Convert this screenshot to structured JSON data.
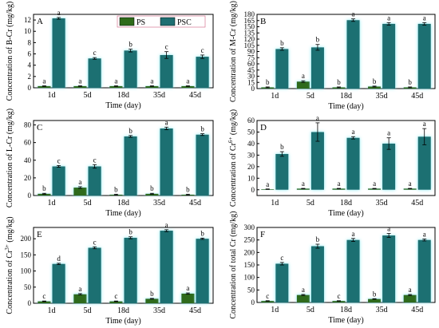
{
  "figure": {
    "legend": {
      "items": [
        {
          "name": "PS",
          "color": "#2f6b1a"
        },
        {
          "name": "PSC",
          "color": "#1f6f72"
        }
      ]
    },
    "colors": {
      "PS": "#2f6b1a",
      "PSC": "#1f6f72",
      "glow": "#7fe9f2"
    }
  },
  "chart_data": [
    {
      "type": "bar",
      "panel": "A",
      "ylabel": "Concentration of B-Cr (mg/kg)",
      "xlabel": "Time (day)",
      "categories": [
        "1d",
        "5d",
        "18d",
        "35d",
        "45d"
      ],
      "ylim": [
        0,
        13
      ],
      "yticks": [
        0,
        2,
        4,
        6,
        8,
        10,
        12
      ],
      "legend": "top-center",
      "series": [
        {
          "name": "PS",
          "values": [
            0.3,
            0.3,
            0.3,
            0.3,
            0.3
          ],
          "errors": [
            0.05,
            0.05,
            0.05,
            0.05,
            0.05
          ],
          "letters": [
            "a",
            "a",
            "a",
            "a",
            "a"
          ]
        },
        {
          "name": "PSC",
          "values": [
            12.3,
            5.2,
            6.6,
            5.8,
            5.5
          ],
          "errors": [
            0.15,
            0.15,
            0.25,
            0.6,
            0.3
          ],
          "letters": [
            "a",
            "c",
            "b",
            "c",
            "c"
          ]
        }
      ]
    },
    {
      "type": "bar",
      "panel": "B",
      "ylabel": "Concentration of M-Cr (mg/kg)",
      "xlabel": "Time (day)",
      "categories": [
        "1d",
        "5d",
        "18d",
        "35d",
        "45d"
      ],
      "ylim": [
        0,
        180
      ],
      "yticks": [
        0,
        15,
        30,
        45,
        60,
        75,
        90,
        105,
        120,
        135,
        150,
        165,
        180
      ],
      "series": [
        {
          "name": "PS",
          "values": [
            3,
            17,
            3,
            5,
            3
          ],
          "errors": [
            1,
            2,
            1,
            1,
            1
          ],
          "letters": [
            "b",
            "a",
            "b",
            "b",
            "b"
          ]
        },
        {
          "name": "PSC",
          "values": [
            96,
            100,
            166,
            157,
            157
          ],
          "errors": [
            3,
            7,
            3,
            3,
            3
          ],
          "letters": [
            "b",
            "b",
            "a",
            "a",
            "a"
          ]
        }
      ]
    },
    {
      "type": "bar",
      "panel": "C",
      "ylabel": "Concentration of L-Cr (mg/kg)",
      "xlabel": "Time (day)",
      "categories": [
        "1d",
        "5d",
        "18d",
        "35d",
        "45d"
      ],
      "ylim": [
        0,
        85
      ],
      "yticks": [
        0,
        20,
        40,
        60,
        80
      ],
      "series": [
        {
          "name": "PS",
          "values": [
            2,
            9,
            1,
            2,
            1
          ],
          "errors": [
            0.5,
            1,
            0.5,
            0.5,
            0.5
          ],
          "letters": [
            "b",
            "a",
            "b",
            "b",
            "b"
          ]
        },
        {
          "name": "PSC",
          "values": [
            33,
            33,
            67,
            76,
            69
          ],
          "errors": [
            1,
            2,
            1,
            1.5,
            1
          ],
          "letters": [
            "c",
            "c",
            "b",
            "a",
            "b"
          ]
        }
      ]
    },
    {
      "type": "bar",
      "panel": "D",
      "ylabel": "Concentration of Cr6+ (mg/kg)",
      "xlabel": "Time (day)",
      "categories": [
        "1d",
        "5d",
        "18d",
        "35d",
        "45d"
      ],
      "ylim": [
        -5,
        60
      ],
      "yticks": [
        0,
        10,
        20,
        30,
        40,
        50,
        60
      ],
      "series": [
        {
          "name": "PS",
          "values": [
            0.5,
            1,
            1,
            1,
            1
          ],
          "errors": [
            0.2,
            0.2,
            0.2,
            0.2,
            0.2
          ],
          "letters": [
            "a",
            "a",
            "a",
            "a",
            "a"
          ]
        },
        {
          "name": "PSC",
          "values": [
            31,
            50,
            45,
            40,
            46
          ],
          "errors": [
            2,
            8,
            1,
            5,
            7
          ],
          "letters": [
            "b",
            "a",
            "a",
            "a",
            "a"
          ]
        }
      ]
    },
    {
      "type": "bar",
      "panel": "E",
      "ylabel": "Concentration of Cr3+ (mg/kg)",
      "xlabel": "Time (day)",
      "categories": [
        "1d",
        "5d",
        "18d",
        "35d",
        "45d"
      ],
      "ylim": [
        0,
        235
      ],
      "yticks": [
        0,
        50,
        100,
        150,
        200
      ],
      "series": [
        {
          "name": "PS",
          "values": [
            6,
            28,
            6,
            14,
            30
          ],
          "errors": [
            1,
            2,
            1,
            1,
            2
          ],
          "letters": [
            "c",
            "a",
            "c",
            "b",
            "a"
          ]
        },
        {
          "name": "PSC",
          "values": [
            122,
            172,
            203,
            225,
            200
          ],
          "errors": [
            2,
            3,
            3,
            3,
            2
          ],
          "letters": [
            "d",
            "c",
            "b",
            "a",
            "b"
          ]
        }
      ]
    },
    {
      "type": "bar",
      "panel": "F",
      "ylabel": "Concentration of total Cr (mg/kg)",
      "xlabel": "Time (day)",
      "categories": [
        "1d",
        "5d",
        "18d",
        "35d",
        "45d"
      ],
      "ylim": [
        0,
        300
      ],
      "yticks": [
        0,
        50,
        100,
        150,
        200,
        250,
        300
      ],
      "series": [
        {
          "name": "PS",
          "values": [
            6,
            30,
            6,
            14,
            30
          ],
          "errors": [
            1,
            2,
            1,
            1,
            2
          ],
          "letters": [
            "c",
            "a",
            "c",
            "b",
            "a"
          ]
        },
        {
          "name": "PSC",
          "values": [
            155,
            225,
            250,
            268,
            250
          ],
          "errors": [
            5,
            8,
            6,
            8,
            4
          ],
          "letters": [
            "c",
            "b",
            "a",
            "a",
            "a"
          ]
        }
      ]
    }
  ]
}
